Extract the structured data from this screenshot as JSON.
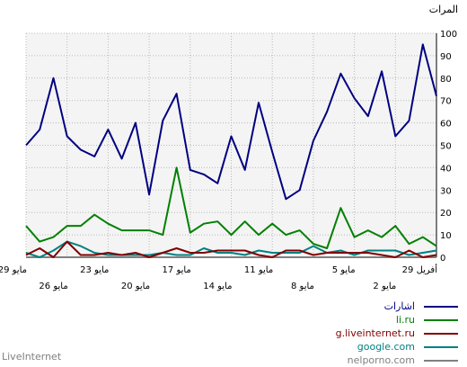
{
  "ylabel": "المرات",
  "watermark": "LiveInternet",
  "chart_data": {
    "type": "line",
    "ylim": [
      0,
      100
    ],
    "yticks": [
      0,
      10,
      20,
      30,
      40,
      50,
      60,
      70,
      80,
      90,
      100
    ],
    "grid": true,
    "legend_position": "bottom-right",
    "x_tick_labels_top": [
      "29 مايو",
      "23 مايو",
      "17 مايو",
      "11 مايو",
      "5 مايو",
      "29 أفريل"
    ],
    "x_tick_labels_bottom": [
      "26 مايو",
      "20 مايو",
      "14 مايو",
      "8 مايو",
      "2 مايو"
    ],
    "series": [
      {
        "name": "اشارات",
        "color": "#000080",
        "values": [
          50,
          57,
          80,
          54,
          48,
          45,
          57,
          44,
          60,
          28,
          61,
          73,
          39,
          37,
          33,
          54,
          39,
          69,
          47,
          26,
          30,
          52,
          65,
          82,
          71,
          63,
          83,
          54,
          61,
          95,
          72
        ]
      },
      {
        "name": "li.ru",
        "color": "#008000",
        "values": [
          14,
          7,
          9,
          14,
          14,
          19,
          15,
          12,
          12,
          12,
          10,
          40,
          11,
          15,
          16,
          10,
          16,
          10,
          15,
          10,
          12,
          6,
          4,
          22,
          9,
          12,
          9,
          14,
          6,
          9,
          5
        ]
      },
      {
        "name": "g.liveinternet.ru",
        "color": "#800000",
        "values": [
          1,
          4,
          0,
          7,
          1,
          1,
          2,
          1,
          2,
          0,
          2,
          4,
          2,
          2,
          3,
          3,
          3,
          1,
          0,
          3,
          3,
          1,
          2,
          2,
          2,
          2,
          1,
          0,
          3,
          0,
          1
        ]
      },
      {
        "name": "google.com",
        "color": "#008080",
        "values": [
          2,
          0,
          3,
          7,
          5,
          2,
          1,
          1,
          1,
          1,
          2,
          1,
          1,
          4,
          2,
          2,
          1,
          3,
          2,
          2,
          2,
          5,
          2,
          3,
          1,
          3,
          3,
          3,
          1,
          2,
          3
        ]
      },
      {
        "name": "nelporno.com",
        "color": "#808080",
        "values": [
          0,
          0,
          0,
          0,
          0,
          0,
          0,
          0,
          0,
          0,
          0,
          0,
          0,
          0,
          0,
          0,
          0,
          0,
          0,
          0,
          0,
          0,
          0,
          0,
          0,
          0,
          0,
          0,
          0,
          0,
          0
        ]
      }
    ]
  }
}
